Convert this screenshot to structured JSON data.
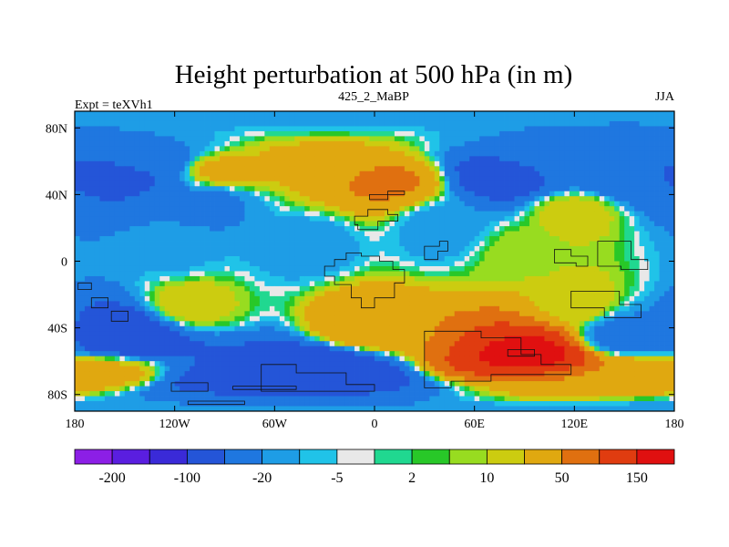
{
  "chart_data": {
    "type": "heatmap",
    "title": "Height perturbation at 500 hPa (in m)",
    "left_label": "Expt = teXVh1",
    "center_label": "425_2_MaBP",
    "right_label": "JJA",
    "x_range": [
      -180,
      180
    ],
    "y_range": [
      -90,
      90
    ],
    "x_ticks": [
      {
        "value": -180,
        "label": "180"
      },
      {
        "value": -120,
        "label": "120W"
      },
      {
        "value": -60,
        "label": "60W"
      },
      {
        "value": 0,
        "label": "0"
      },
      {
        "value": 60,
        "label": "60E"
      },
      {
        "value": 120,
        "label": "120E"
      },
      {
        "value": 180,
        "label": "180"
      }
    ],
    "y_ticks": [
      {
        "value": 80,
        "label": "80N"
      },
      {
        "value": 40,
        "label": "40N"
      },
      {
        "value": 0,
        "label": "0"
      },
      {
        "value": -40,
        "label": "40S"
      },
      {
        "value": -80,
        "label": "80S"
      }
    ],
    "colorbar": {
      "levels": [
        -200,
        -150,
        -100,
        -50,
        -20,
        -10,
        -5,
        -2,
        2,
        5,
        10,
        20,
        50,
        100,
        150,
        200
      ],
      "colors": [
        "#8c1fe6",
        "#5a1ee0",
        "#3a2ad8",
        "#2455d8",
        "#1f77e0",
        "#1e9de6",
        "#20c3e8",
        "#e8e8e8",
        "#20d890",
        "#28c828",
        "#98dc20",
        "#cccc10",
        "#e0a810",
        "#e07010",
        "#e03c10",
        "#e01010"
      ],
      "tick_labels": [
        {
          "value": -200,
          "label": "-200"
        },
        {
          "value": -100,
          "label": "-100"
        },
        {
          "value": -20,
          "label": "-20"
        },
        {
          "value": -5,
          "label": "-5"
        },
        {
          "value": 2,
          "label": "2"
        },
        {
          "value": 10,
          "label": "10"
        },
        {
          "value": 50,
          "label": "50"
        },
        {
          "value": 150,
          "label": "150"
        }
      ]
    },
    "field_features": [
      {
        "lon": -150,
        "lat": 52,
        "value": -60
      },
      {
        "lon": -135,
        "lat": 58,
        "value": -40
      },
      {
        "lon": -90,
        "lat": 55,
        "value": 25
      },
      {
        "lon": -30,
        "lat": 58,
        "value": 30
      },
      {
        "lon": 5,
        "lat": 48,
        "value": 55
      },
      {
        "lon": 80,
        "lat": 52,
        "value": -75
      },
      {
        "lon": 155,
        "lat": 52,
        "value": -50
      },
      {
        "lon": 110,
        "lat": 60,
        "value": -20
      },
      {
        "lon": 120,
        "lat": 28,
        "value": 15
      },
      {
        "lon": 40,
        "lat": 20,
        "value": -15
      },
      {
        "lon": -100,
        "lat": 35,
        "value": -25
      },
      {
        "lon": -40,
        "lat": 10,
        "value": -15
      },
      {
        "lon": -120,
        "lat": 5,
        "value": -12
      },
      {
        "lon": 90,
        "lat": 5,
        "value": 8
      },
      {
        "lon": -110,
        "lat": -25,
        "value": 15
      },
      {
        "lon": -5,
        "lat": -38,
        "value": 45
      },
      {
        "lon": -150,
        "lat": -45,
        "value": -90
      },
      {
        "lon": -40,
        "lat": -65,
        "value": -90
      },
      {
        "lon": -90,
        "lat": -72,
        "value": -60
      },
      {
        "lon": 95,
        "lat": -55,
        "value": 160
      },
      {
        "lon": 150,
        "lat": -45,
        "value": -30
      },
      {
        "lon": 120,
        "lat": -25,
        "value": 15
      },
      {
        "lon": 160,
        "lat": -70,
        "value": 40
      },
      {
        "lon": -165,
        "lat": -68,
        "value": 25
      }
    ]
  }
}
